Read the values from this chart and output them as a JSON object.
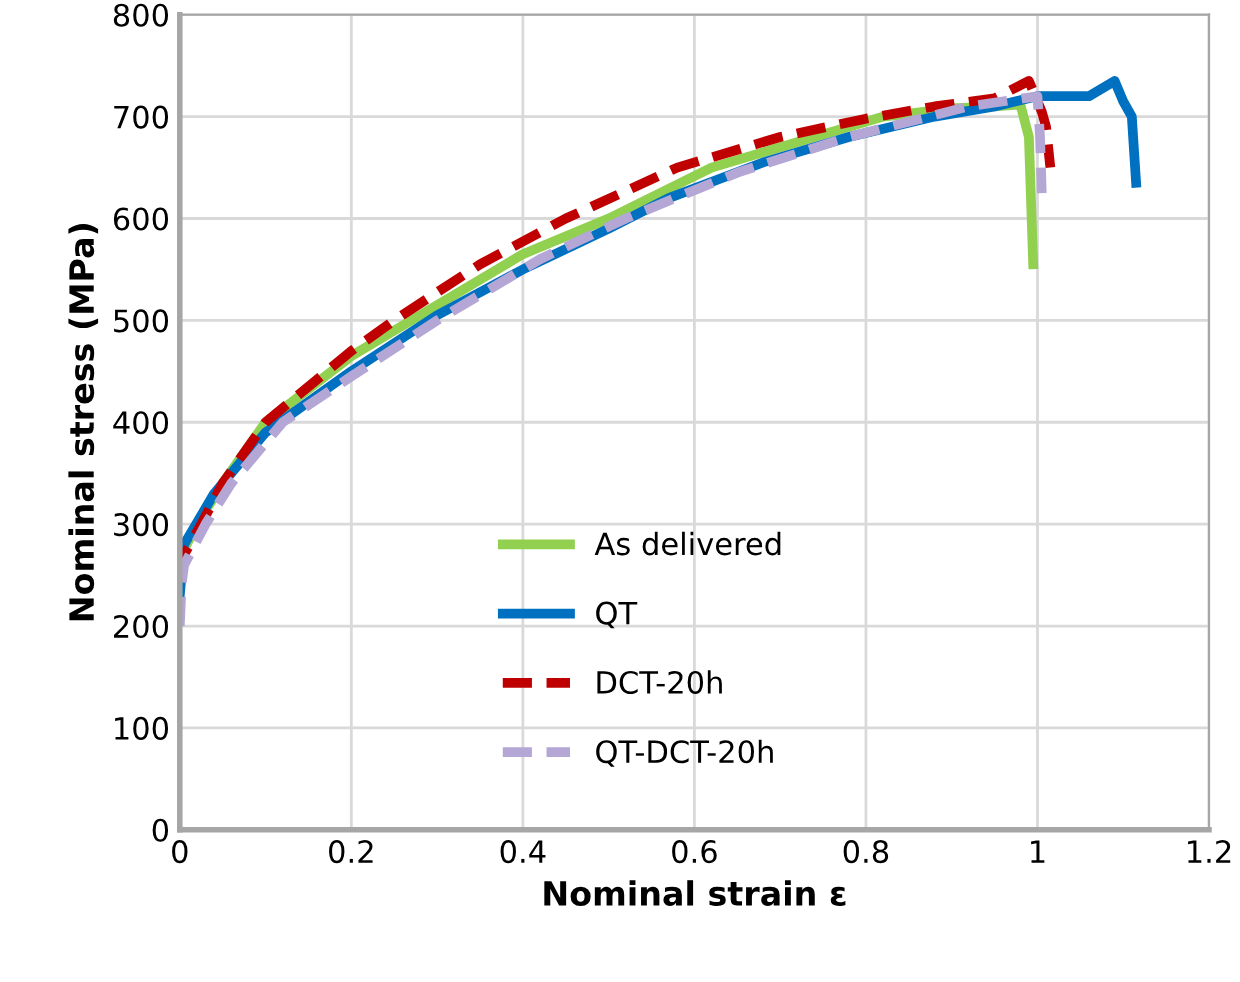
{
  "chart_data": {
    "type": "line",
    "xlabel": "Nominal strain ε",
    "ylabel": "Nominal stress (MPa)",
    "xlim": [
      0,
      1.2
    ],
    "xticks": [
      0,
      0.2,
      0.4,
      0.6,
      0.8,
      1,
      1.2
    ],
    "ylim": [
      0,
      800
    ],
    "yticks": [
      0,
      100,
      200,
      300,
      400,
      500,
      600,
      700,
      800
    ],
    "grid": true,
    "legend": "bottom",
    "marker": "none",
    "series": [
      {
        "name": "As delivered",
        "color": "#92d050",
        "line_style": "solid",
        "x": [
          0,
          0.005,
          0.02,
          0.05,
          0.1,
          0.2,
          0.27,
          0.4,
          0.5,
          0.62,
          0.72,
          0.82,
          0.9,
          0.95,
          0.98,
          0.99,
          0.995
        ],
        "values": [
          250,
          275,
          300,
          340,
          400,
          465,
          500,
          565,
          600,
          650,
          675,
          700,
          708,
          710,
          712,
          680,
          555
        ]
      },
      {
        "name": "QT",
        "color": "#0070c0",
        "line_style": "solid",
        "x": [
          0,
          0.005,
          0.04,
          0.1,
          0.2,
          0.3,
          0.4,
          0.5,
          0.57,
          0.68,
          0.78,
          0.88,
          0.95,
          1.0,
          1.06,
          1.09,
          1.1,
          1.11,
          1.115
        ],
        "values": [
          230,
          280,
          330,
          390,
          450,
          505,
          550,
          590,
          620,
          655,
          680,
          700,
          710,
          720,
          720,
          735,
          715,
          700,
          635
        ]
      },
      {
        "name": "DCT-20h",
        "color": "#c00000",
        "line_style": "dashed",
        "x": [
          0,
          0.005,
          0.025,
          0.05,
          0.1,
          0.2,
          0.25,
          0.35,
          0.45,
          0.58,
          0.7,
          0.8,
          0.88,
          0.95,
          0.99,
          1.005,
          1.01,
          1.015
        ],
        "values": [
          250,
          270,
          300,
          340,
          400,
          470,
          500,
          555,
          600,
          650,
          680,
          698,
          710,
          718,
          735,
          705,
          690,
          650
        ]
      },
      {
        "name": "QT-DCT-20h",
        "color": "#b4a7d6",
        "line_style": "dashed",
        "x": [
          0,
          0.002,
          0.005,
          0.03,
          0.06,
          0.12,
          0.2,
          0.3,
          0.42,
          0.52,
          0.65,
          0.78,
          0.92,
          1.0,
          1.003,
          1.005
        ],
        "values": [
          200,
          240,
          260,
          300,
          340,
          400,
          445,
          500,
          560,
          600,
          645,
          680,
          710,
          720,
          680,
          625
        ]
      }
    ]
  }
}
